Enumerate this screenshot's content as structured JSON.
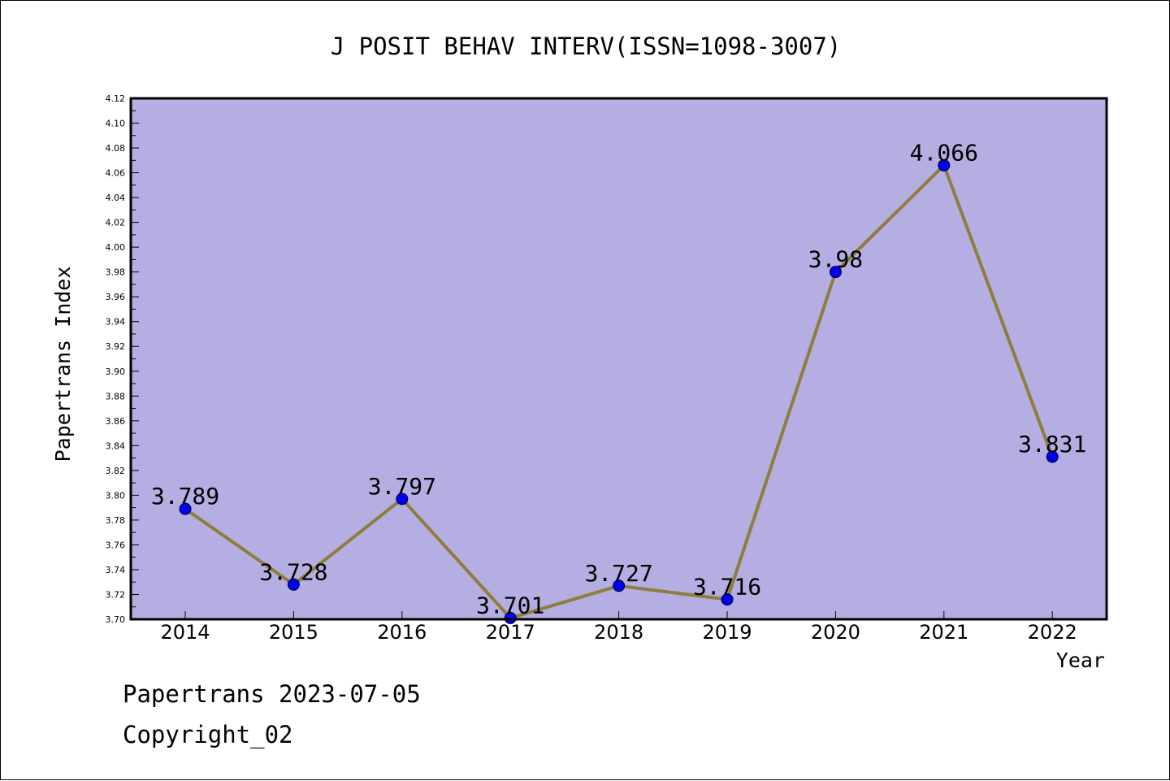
{
  "chart_data": {
    "type": "line",
    "title": "J POSIT BEHAV INTERV(ISSN=1098-3007)",
    "xlabel": "Year",
    "ylabel": "Papertrans Index",
    "categories": [
      "2014",
      "2015",
      "2016",
      "2017",
      "2018",
      "2019",
      "2020",
      "2021",
      "2022"
    ],
    "values": [
      3.789,
      3.728,
      3.797,
      3.701,
      3.727,
      3.716,
      3.98,
      4.066,
      3.831
    ],
    "value_labels": [
      "3.789",
      "3.728",
      "3.797",
      "3.701",
      "3.727",
      "3.716",
      "3.98",
      "4.066",
      "3.831"
    ],
    "ylim": [
      3.7,
      4.12
    ],
    "yticks": [
      "3.70",
      "3.72",
      "3.74",
      "3.76",
      "3.78",
      "3.80",
      "3.82",
      "3.84",
      "3.86",
      "3.88",
      "3.90",
      "3.92",
      "3.94",
      "3.96",
      "3.98",
      "4.00",
      "4.02",
      "4.04",
      "4.06",
      "4.08",
      "4.10",
      "4.12"
    ],
    "grid": false,
    "legend": "none",
    "colors": {
      "plot_background": "#b5aee2",
      "line": "#8e7d3c",
      "marker": "#0000ee"
    }
  },
  "footer": {
    "line1": "Papertrans 2023-07-05",
    "line2": "Copyright_02"
  }
}
